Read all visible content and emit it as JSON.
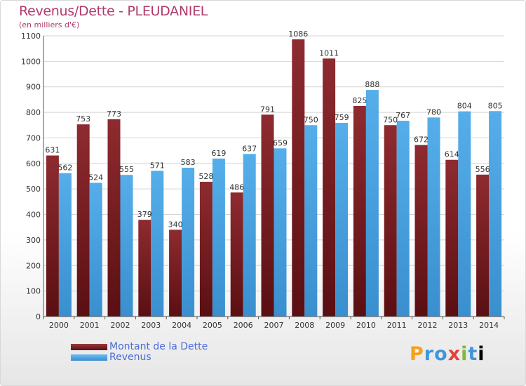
{
  "header": {
    "title": "Revenus/Dette - PLEUDANIEL",
    "subtitle": "(en milliers d'€)"
  },
  "legend": {
    "items": [
      {
        "label": "Montant de la Dette",
        "color": "#7a1f23"
      },
      {
        "label": "Revenus",
        "color": "#4aa3e4"
      }
    ]
  },
  "logo": {
    "text": "Proxiti"
  },
  "chart_data": {
    "type": "bar",
    "title": "Revenus/Dette - PLEUDANIEL",
    "subtitle": "(en milliers d'€)",
    "xlabel": "",
    "ylabel": "",
    "ylim": [
      0,
      1100
    ],
    "yticks": [
      0,
      100,
      200,
      300,
      400,
      500,
      600,
      700,
      800,
      900,
      1000,
      1100
    ],
    "grid": true,
    "legend_position": "bottom-left",
    "categories": [
      "2000",
      "2001",
      "2002",
      "2003",
      "2004",
      "2005",
      "2006",
      "2007",
      "2008",
      "2009",
      "2010",
      "2011",
      "2012",
      "2013",
      "2014"
    ],
    "series": [
      {
        "name": "Montant de la Dette",
        "color": "#7a1f23",
        "values": [
          631,
          753,
          773,
          379,
          340,
          528,
          486,
          791,
          1086,
          1011,
          825,
          750,
          672,
          614,
          556
        ]
      },
      {
        "name": "Revenus",
        "color": "#4aa3e4",
        "values": [
          562,
          524,
          555,
          571,
          583,
          619,
          637,
          659,
          750,
          759,
          888,
          767,
          780,
          804,
          805
        ]
      }
    ]
  }
}
